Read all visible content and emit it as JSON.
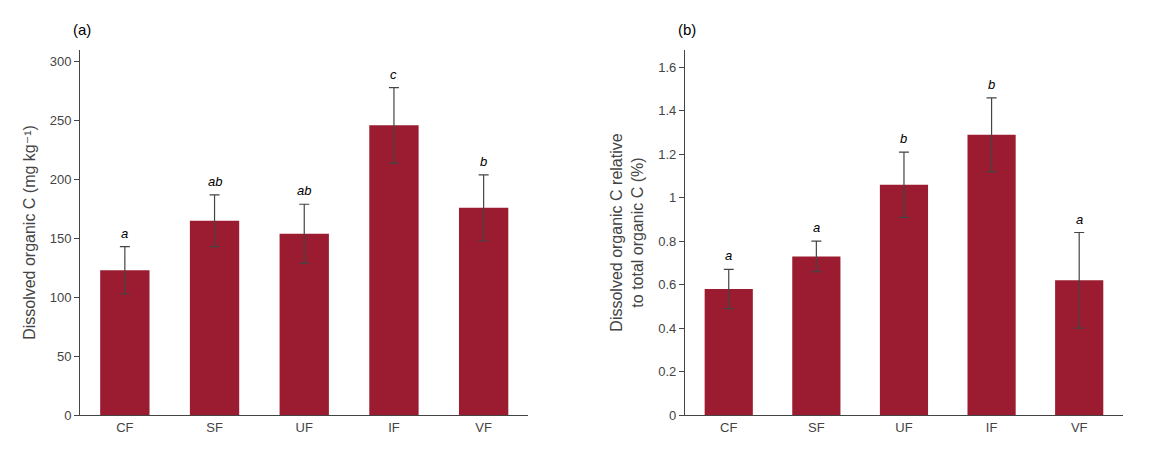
{
  "chart_data": [
    {
      "type": "bar",
      "title": "(a)",
      "categories": [
        "CF",
        "SF",
        "UF",
        "IF",
        "VF"
      ],
      "values": [
        123,
        165,
        154,
        246,
        176
      ],
      "errors": [
        20,
        22,
        25,
        32,
        28
      ],
      "annotations": [
        "a",
        "ab",
        "ab",
        "c",
        "b"
      ],
      "ylabel": "Dissolved organic C (mg kg⁻¹)",
      "ylim": [
        0,
        310
      ],
      "yticks": [
        0,
        50,
        100,
        150,
        200,
        250,
        300
      ],
      "color": "#9b1c31",
      "grid": false
    },
    {
      "type": "bar",
      "title": "(b)",
      "categories": [
        "CF",
        "SF",
        "UF",
        "IF",
        "VF"
      ],
      "values": [
        0.58,
        0.73,
        1.06,
        1.29,
        0.62
      ],
      "errors": [
        0.09,
        0.07,
        0.15,
        0.17,
        0.22
      ],
      "annotations": [
        "a",
        "a",
        "b",
        "b",
        "a"
      ],
      "ylabel": "Dissolved organic C relative\nto total organic C (%)",
      "ylim": [
        0.0,
        1.68
      ],
      "yticks": [
        0,
        0.2,
        0.4,
        0.6,
        0.8,
        1,
        1.2,
        1.4,
        1.6
      ],
      "color": "#9b1c31",
      "grid": false
    }
  ]
}
